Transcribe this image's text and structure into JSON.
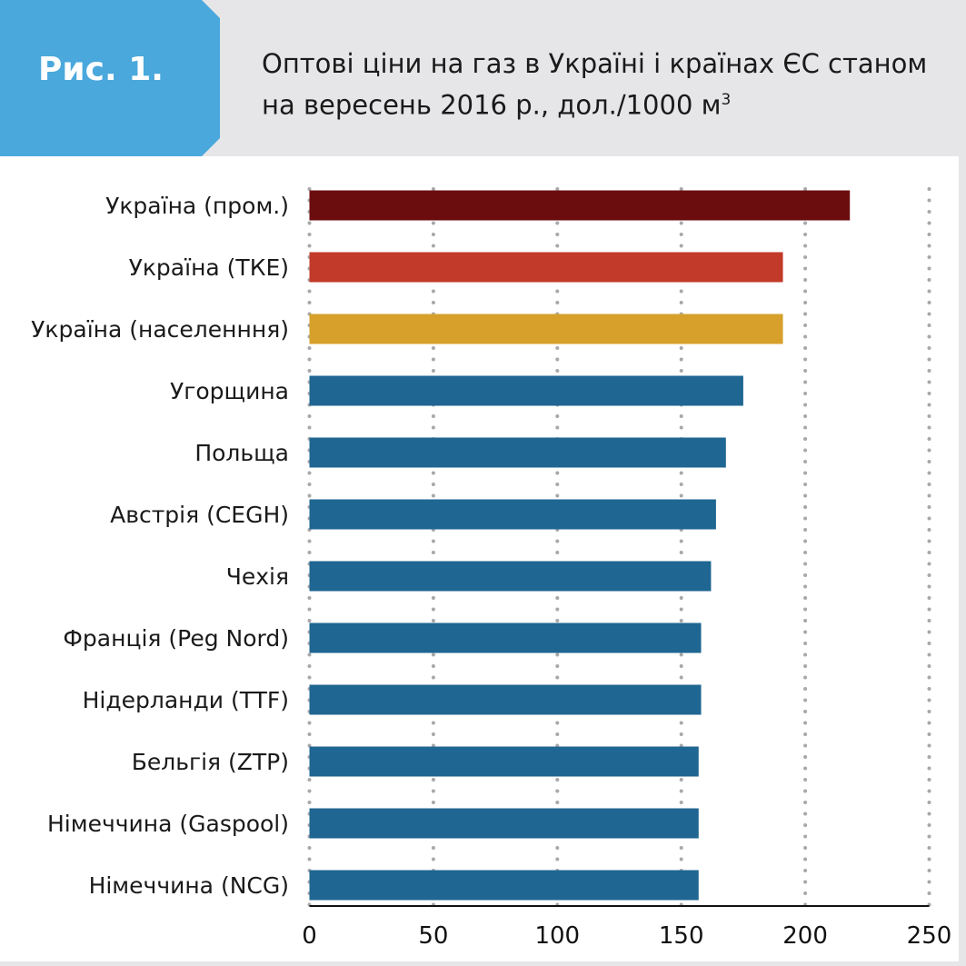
{
  "header": {
    "figure_label": "Рис. 1.",
    "title_line1": "Оптові ціни на газ в Україні і країнах ЄС станом",
    "title_line2": "на вересень 2016 р., дол./1000 м",
    "title_sup": "3",
    "accent_color": "#4aa8dc"
  },
  "chart_data": {
    "type": "bar",
    "orientation": "horizontal",
    "categories": [
      "Україна (пром.)",
      "Україна (ТКЕ)",
      "Україна (населенння)",
      "Угорщина",
      "Польща",
      "Австрія (CEGH)",
      "Чехія",
      "Франція (Peg Nord)",
      "Нідерланди (TTF)",
      "Бельгія (ZTP)",
      "Німеччина (Gaspool)",
      "Німеччина (NCG)"
    ],
    "values": [
      218,
      191,
      191,
      175,
      168,
      164,
      162,
      158,
      158,
      157,
      157,
      157
    ],
    "colors": [
      "#6b0d0f",
      "#c23a29",
      "#d6a02a",
      "#1f6692",
      "#1f6692",
      "#1f6692",
      "#1f6692",
      "#1f6692",
      "#1f6692",
      "#1f6692",
      "#1f6692",
      "#1f6692"
    ],
    "xlim": [
      0,
      250
    ],
    "xticks": [
      "0",
      "50",
      "100",
      "150",
      "200",
      "250"
    ],
    "grid": "vertical dotted"
  }
}
